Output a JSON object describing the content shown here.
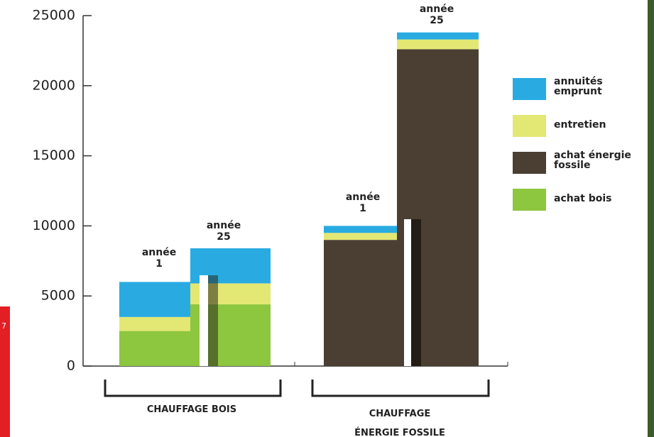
{
  "page_number": "7",
  "chart_data": {
    "type": "stacked-bar",
    "categories": [
      "année\n1",
      "année\n25",
      "année\n1",
      "année\n25"
    ],
    "groups": [
      "CHAUFFAGE BOIS",
      "CHAUFFAGE\nÉNERGIE FOSSILE"
    ],
    "series": [
      {
        "name": "achat bois",
        "color": "#8dc63f",
        "values": [
          2500,
          4400,
          null,
          null
        ]
      },
      {
        "name": "achat énergie\nfossile",
        "color": "#4a3f32",
        "values": [
          null,
          null,
          9000,
          22600
        ]
      },
      {
        "name": "entretien",
        "color": "#e3e774",
        "values": [
          1000,
          1500,
          500,
          700
        ]
      },
      {
        "name": "annuités\nemprunt",
        "color": "#29abe2",
        "values": [
          2500,
          2500,
          500,
          500
        ]
      }
    ],
    "ylim": [
      0,
      25000
    ],
    "yticks": [
      0,
      5000,
      10000,
      15000,
      20000,
      25000
    ]
  }
}
